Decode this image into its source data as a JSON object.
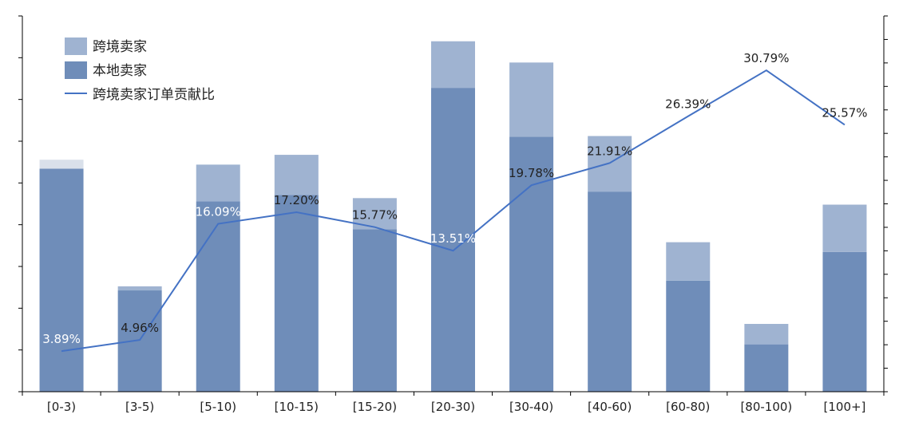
{
  "chart_data": {
    "type": "bar",
    "stacked": true,
    "categories": [
      "[0-3)",
      "[3-5)",
      "[5-10)",
      "[10-15)",
      "[15-20)",
      "[20-30)",
      "[30-40)",
      "[40-60)",
      "[60-80)",
      "[80-100)",
      "[100+]"
    ],
    "series": [
      {
        "name": "本地卖家",
        "type": "bar",
        "values": [
          273,
          124,
          233,
          241,
          199,
          372,
          312,
          245,
          136,
          58,
          171
        ],
        "color": "#6f8db9"
      },
      {
        "name": "跨境卖家",
        "type": "bar",
        "values": [
          11,
          5,
          45,
          49,
          38,
          57,
          91,
          68,
          47,
          25,
          58
        ],
        "color": "#9fb3d1"
      },
      {
        "name": "跨境卖家订单贡献比",
        "type": "line",
        "axis": "right",
        "values": [
          3.89,
          4.96,
          16.09,
          17.2,
          15.77,
          13.51,
          19.78,
          21.91,
          26.39,
          30.79,
          25.57
        ],
        "labels": [
          "3.89%",
          "4.96%",
          "16.09%",
          "17.20%",
          "15.77%",
          "13.51%",
          "19.78%",
          "21.91%",
          "26.39%",
          "30.79%",
          "25.57%"
        ],
        "color": "#4472c4"
      }
    ],
    "ylim_left": [
      0,
      460
    ],
    "ylim_right": [
      0,
      36
    ],
    "tick_labels_shown": false,
    "legend": {
      "position": "top-left",
      "entries": [
        "跨境卖家",
        "本地卖家",
        "跨境卖家订单贡献比"
      ]
    },
    "grid": false
  }
}
